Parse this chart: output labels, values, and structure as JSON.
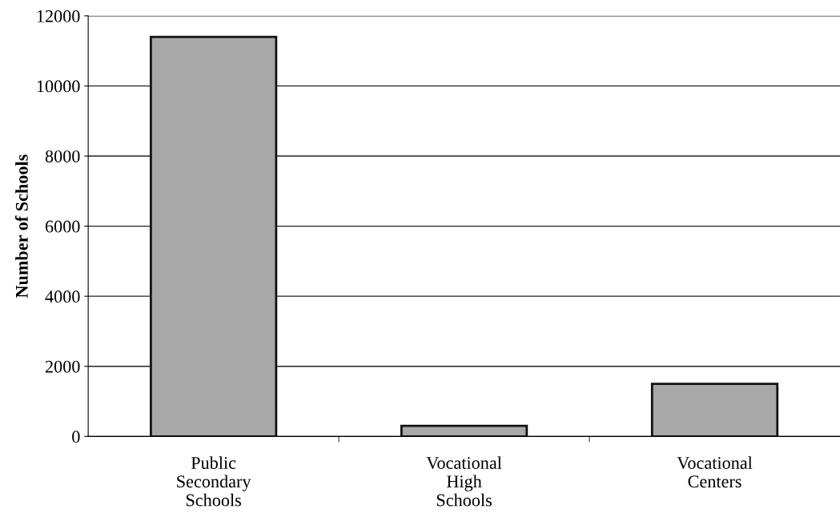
{
  "chart_data": {
    "type": "bar",
    "ylabel": "Number of Schools",
    "categories": [
      "Public\nSecondary\nSchools",
      "Vocational\nHigh\nSchools",
      "Vocational\nCenters"
    ],
    "values": [
      11400,
      300,
      1500
    ],
    "color": "#a8a8a8",
    "ylim": [
      0,
      12000
    ],
    "yticks": [
      0,
      2000,
      4000,
      6000,
      8000,
      10000,
      12000
    ],
    "grid": "y"
  }
}
